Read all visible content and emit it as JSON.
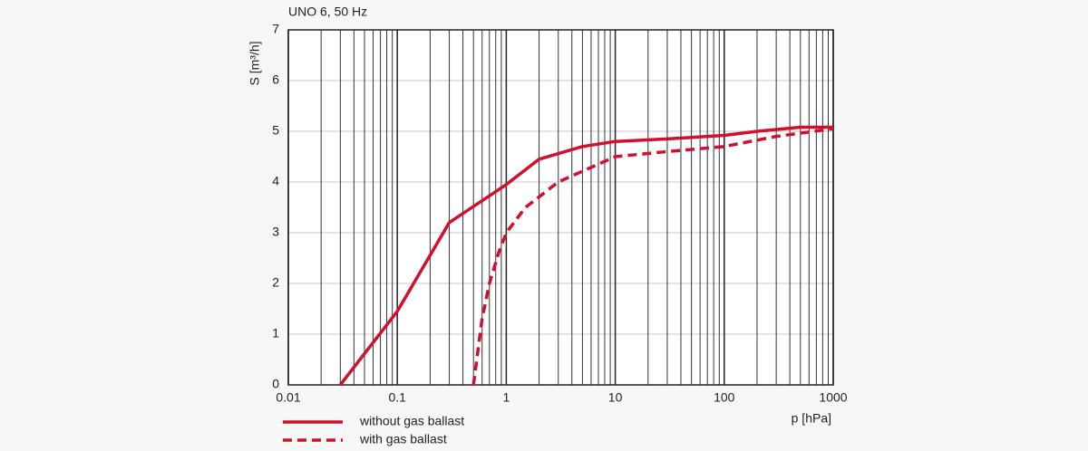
{
  "chart_data": {
    "type": "line",
    "title": "UNO 6, 50 Hz",
    "x_label": "p [hPa]",
    "y_label": "S [m³/h]",
    "log_x": true,
    "grid": true,
    "legend": "bottom-left",
    "xlim": [
      0.01,
      1000
    ],
    "ylim": [
      0,
      7
    ],
    "xticks": [
      0.01,
      0.1,
      1,
      10,
      100,
      1000
    ],
    "xminorticks": [
      0.02,
      0.03,
      0.04,
      0.05,
      0.06,
      0.07,
      0.08,
      0.09,
      0.2,
      0.3,
      0.4,
      0.5,
      0.6,
      0.7,
      0.8,
      0.9,
      2,
      3,
      4,
      5,
      6,
      7,
      8,
      9,
      20,
      30,
      40,
      50,
      60,
      70,
      80,
      90,
      200,
      300,
      400,
      500,
      600,
      700,
      800,
      900
    ],
    "yticks": [
      0,
      1,
      2,
      3,
      4,
      5,
      6,
      7
    ],
    "series": [
      {
        "name": "without gas ballast",
        "color": "#d2102e",
        "style": "solid",
        "x": [
          0.03,
          0.1,
          0.3,
          1,
          2,
          5,
          10,
          30,
          100,
          200,
          500,
          1000
        ],
        "values": [
          0,
          1.45,
          3.2,
          3.95,
          4.45,
          4.7,
          4.8,
          4.85,
          4.92,
          5.0,
          5.08,
          5.08
        ]
      },
      {
        "name": "with gas ballast",
        "color": "#d2102e",
        "style": "dashed",
        "x": [
          0.5,
          0.6,
          0.7,
          0.85,
          1,
          1.5,
          3,
          10,
          30,
          100,
          300,
          1000
        ],
        "values": [
          0,
          1.3,
          2.0,
          2.6,
          3.0,
          3.5,
          4.0,
          4.5,
          4.6,
          4.7,
          4.9,
          5.05
        ]
      }
    ]
  }
}
